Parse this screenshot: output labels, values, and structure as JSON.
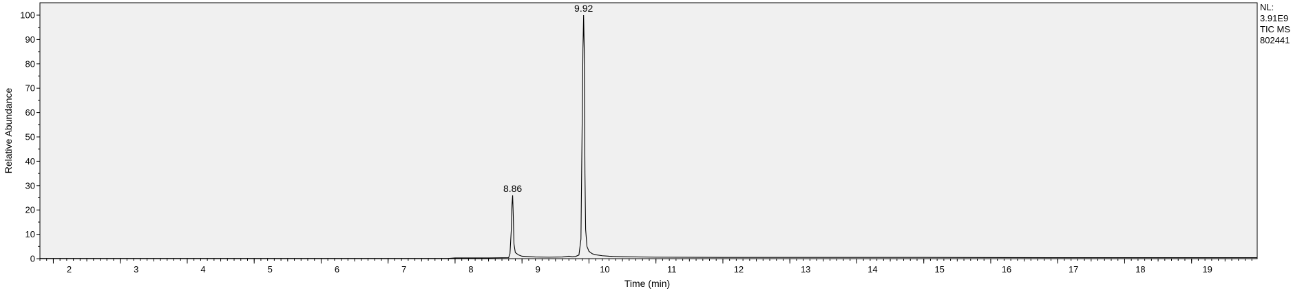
{
  "chart_data": {
    "type": "line",
    "title": "",
    "xlabel": "Time (min)",
    "ylabel": "Relative Abundance",
    "xlim": [
      1.8,
      19.98
    ],
    "ylim": [
      0,
      100
    ],
    "x_ticks": [
      2,
      3,
      4,
      5,
      6,
      7,
      8,
      9,
      10,
      11,
      12,
      13,
      14,
      15,
      16,
      17,
      18,
      19
    ],
    "y_ticks": [
      0,
      10,
      20,
      30,
      40,
      50,
      60,
      70,
      80,
      90,
      100
    ],
    "grid": false,
    "peak_labels": [
      {
        "x": 8.86,
        "y": 26,
        "label": "8.86"
      },
      {
        "x": 9.92,
        "y": 100,
        "label": "9.92"
      }
    ],
    "info_labels": [
      "NL:",
      "3.91E9",
      "TIC  MS",
      "802441"
    ],
    "series": [
      {
        "x": [
          1.8,
          7.9,
          8.0,
          8.5,
          8.8,
          8.82,
          8.84,
          8.85,
          8.86,
          8.87,
          8.88,
          8.9,
          8.95,
          9.0,
          9.2,
          9.4,
          9.6,
          9.7,
          9.75,
          9.8,
          9.85,
          9.88,
          9.9,
          9.91,
          9.92,
          9.93,
          9.94,
          9.95,
          9.97,
          10.0,
          10.05,
          10.1,
          10.2,
          10.3,
          10.5,
          11.0,
          12.0,
          13.0,
          15.0,
          17.0,
          19.0,
          19.98
        ],
        "y": [
          0.1,
          0.1,
          0.3,
          0.3,
          0.4,
          2,
          12,
          22,
          26,
          17,
          6,
          2.5,
          1.5,
          1.0,
          0.7,
          0.6,
          0.7,
          1.0,
          0.8,
          0.9,
          1.5,
          8,
          60,
          86,
          100,
          85,
          35,
          12,
          5,
          3,
          2,
          1.6,
          1.2,
          1.0,
          0.8,
          0.6,
          0.5,
          0.5,
          0.5,
          0.4,
          0.4,
          0.4
        ]
      }
    ]
  },
  "colors": {
    "plot_background": "#f0f0f0",
    "trace": "#000000",
    "axis": "#000000"
  }
}
